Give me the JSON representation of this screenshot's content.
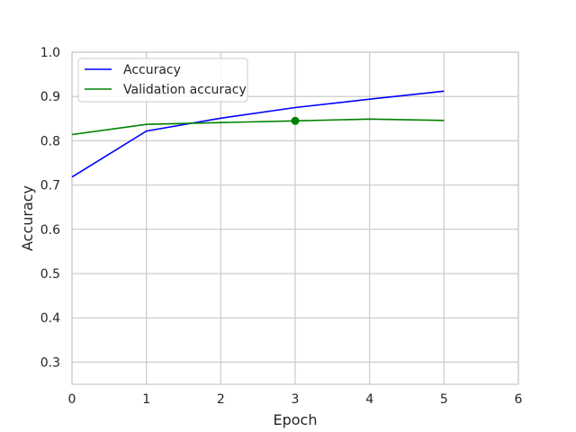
{
  "chart_data": {
    "type": "line",
    "xlabel": "Epoch",
    "ylabel": "Accuracy",
    "xlim": [
      0,
      6
    ],
    "ylim": [
      0.25,
      1.0
    ],
    "xticks": [
      "0",
      "1",
      "2",
      "3",
      "4",
      "5",
      "6"
    ],
    "yticks": [
      "0.3",
      "0.4",
      "0.5",
      "0.6",
      "0.7",
      "0.8",
      "0.9",
      "1.0"
    ],
    "grid": true,
    "legend_position": "top-left",
    "series": [
      {
        "name": "Accuracy",
        "color": "#0000ff",
        "x": [
          0,
          1,
          2,
          3,
          4,
          5
        ],
        "y": [
          0.718,
          0.822,
          0.851,
          0.875,
          0.894,
          0.912
        ]
      },
      {
        "name": "Validation accuracy",
        "color": "#008000",
        "x": [
          0,
          1,
          2,
          3,
          4,
          5
        ],
        "y": [
          0.814,
          0.837,
          0.841,
          0.845,
          0.849,
          0.846
        ]
      }
    ],
    "annotations": [
      {
        "type": "marker",
        "series": "Validation accuracy",
        "x": 3,
        "y": 0.845,
        "color": "#008000"
      }
    ]
  }
}
